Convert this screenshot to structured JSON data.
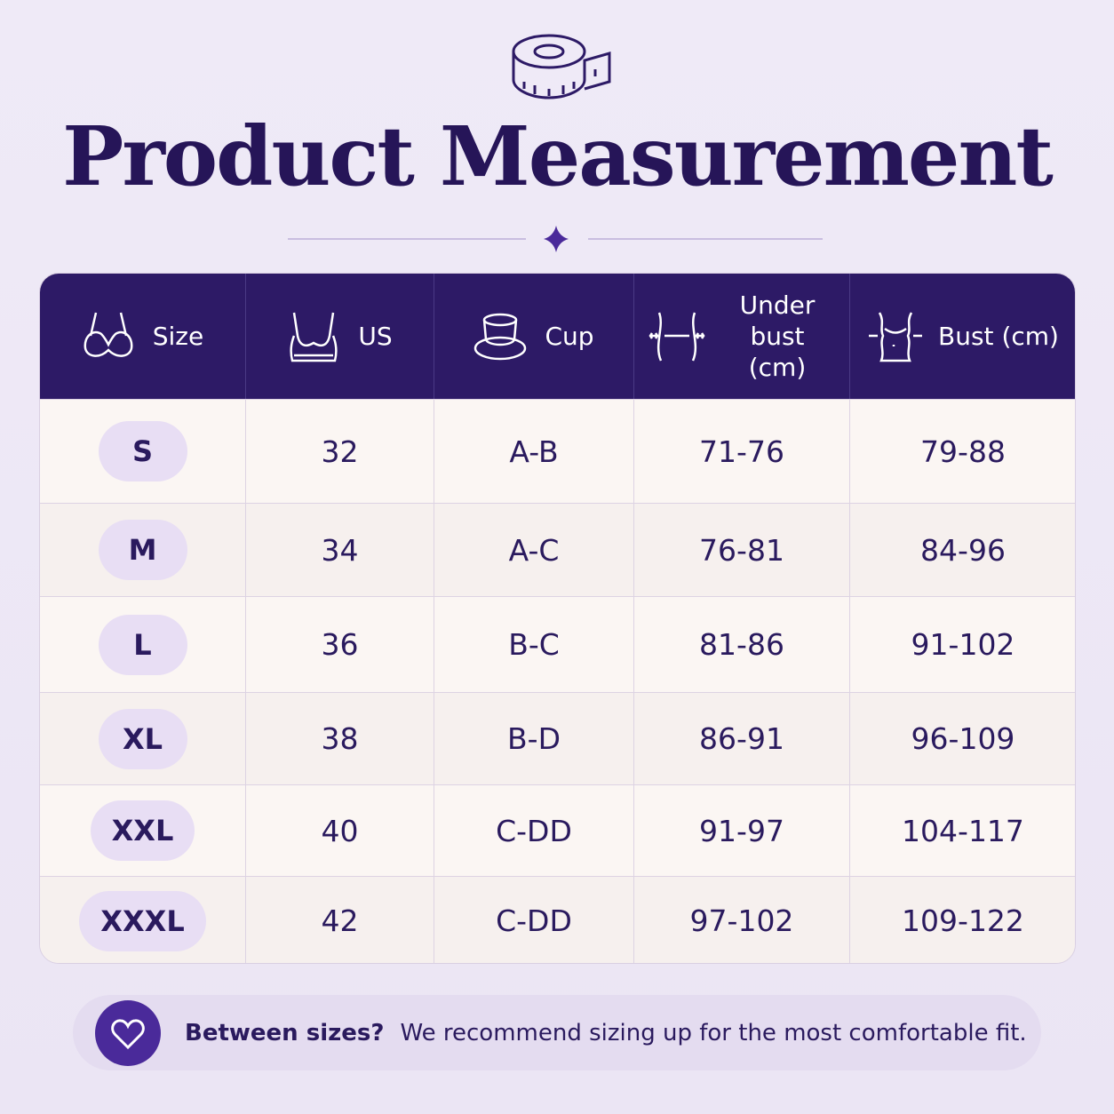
{
  "header": {
    "title": "Product Measurement"
  },
  "table": {
    "columns": [
      "Size",
      "US",
      "Cup",
      "Under bust (cm)",
      "Bust (cm)"
    ],
    "rows": [
      [
        "S",
        "32",
        "A-B",
        "71-76",
        "79-88"
      ],
      [
        "M",
        "34",
        "A-C",
        "76-81",
        "84-96"
      ],
      [
        "L",
        "36",
        "B-C",
        "81-86",
        "91-102"
      ],
      [
        "XL",
        "38",
        "B-D",
        "86-91",
        "96-109"
      ],
      [
        "XXL",
        "40",
        "C-DD",
        "91-97",
        "104-117"
      ],
      [
        "XXXL",
        "42",
        "C-DD",
        "97-102",
        "109-122"
      ]
    ]
  },
  "note": {
    "lead": "Between sizes?",
    "text": "We recommend sizing up for the most comfortable fit."
  }
}
